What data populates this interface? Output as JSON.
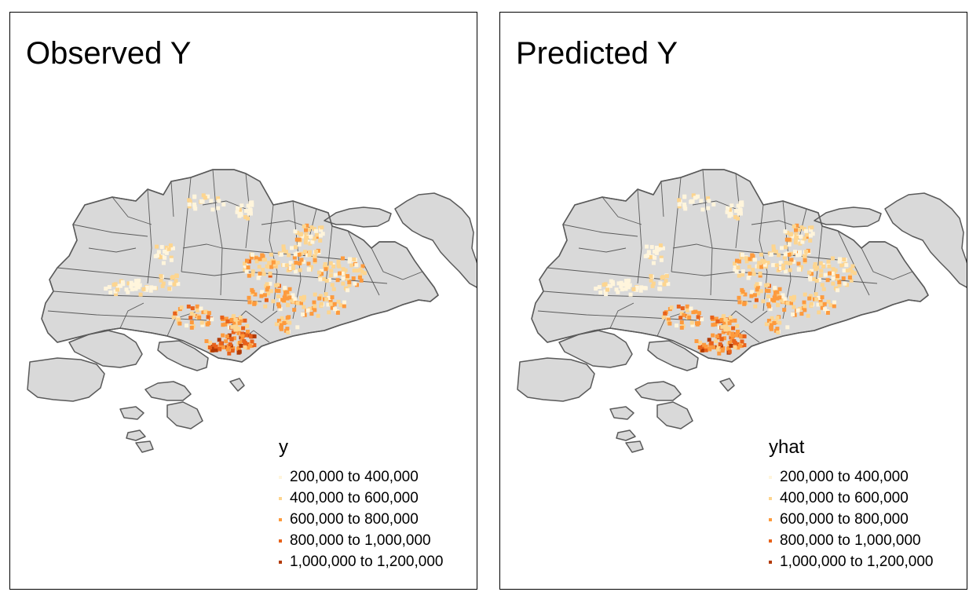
{
  "panels": [
    {
      "title": "Observed Y",
      "legend_title": "y",
      "legend_items": [
        "200,000 to 400,000",
        "400,000 to 600,000",
        "600,000 to 800,000",
        "800,000 to 1,000,000",
        "1,000,000 to 1,200,000"
      ],
      "legend_colors": [
        "#fff5dc",
        "#fdd58f",
        "#fd9a3d",
        "#e8621a",
        "#b33a05"
      ]
    },
    {
      "title": "Predicted Y",
      "legend_title": "yhat",
      "legend_items": [
        "200,000 to 400,000",
        "400,000 to 600,000",
        "600,000 to 800,000",
        "800,000 to 1,000,000",
        "1,000,000 to 1,200,000"
      ],
      "legend_colors": [
        "#fff5dc",
        "#fdd58f",
        "#fd9a3d",
        "#e8621a",
        "#b33a05"
      ]
    }
  ],
  "map_style": {
    "land_fill": "#d9d9d9",
    "boundary_stroke": "#5a5a5a"
  }
}
